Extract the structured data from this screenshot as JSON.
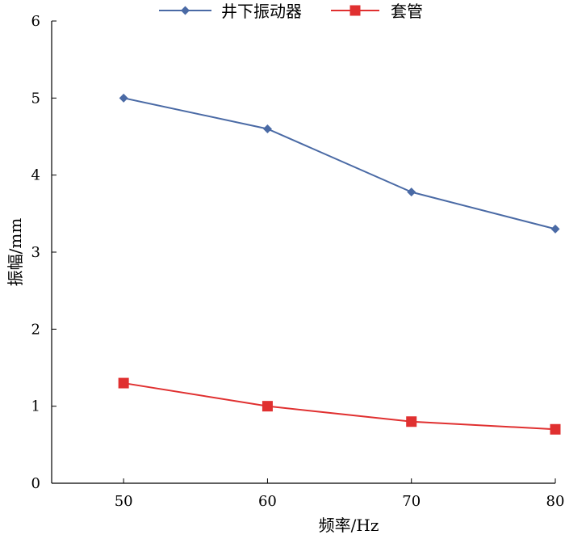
{
  "chart_data": {
    "type": "line",
    "xlabel": "频率/Hz",
    "ylabel": "振幅/mm",
    "categories": [
      "50",
      "60",
      "70",
      "80"
    ],
    "x": [
      50,
      60,
      70,
      80
    ],
    "xlim": [
      45,
      80
    ],
    "ylim": [
      0,
      6
    ],
    "yticks": [
      "0",
      "1",
      "2",
      "3",
      "4",
      "5",
      "6"
    ],
    "xticks": [
      "50",
      "60",
      "70",
      "80"
    ],
    "grid": false,
    "legend_position": "top",
    "series": [
      {
        "name": "井下振动器",
        "values": [
          5.0,
          4.6,
          3.78,
          3.3
        ],
        "color": "#4a6aa5",
        "marker": "diamond"
      },
      {
        "name": "套管",
        "values": [
          1.3,
          1.0,
          0.8,
          0.7
        ],
        "color": "#e03030",
        "marker": "square"
      }
    ]
  }
}
